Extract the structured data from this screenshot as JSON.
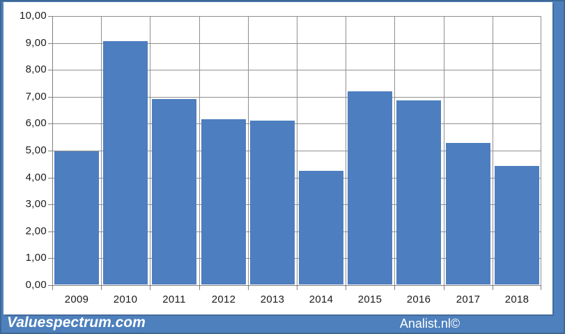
{
  "page": {
    "background_color": "#4d80bc",
    "edge_color": "#3e6795",
    "panel_color": "#ffffff"
  },
  "footer": {
    "left_brand": "Valuespectrum.com",
    "right_brand": "Analist.nl©"
  },
  "chart_data": {
    "type": "bar",
    "title": "",
    "xlabel": "",
    "ylabel": "",
    "categories": [
      "2009",
      "2010",
      "2011",
      "2012",
      "2013",
      "2014",
      "2015",
      "2016",
      "2017",
      "2018"
    ],
    "values": [
      4.95,
      9.05,
      6.9,
      6.15,
      6.1,
      4.22,
      7.17,
      6.85,
      5.27,
      4.4
    ],
    "ylim": [
      0,
      10
    ],
    "ytick_step": 1,
    "ytick_labels": [
      "0,00",
      "1,00",
      "2,00",
      "3,00",
      "4,00",
      "5,00",
      "6,00",
      "7,00",
      "8,00",
      "9,00",
      "10,00"
    ],
    "grid": true,
    "legend": "none",
    "bar_color": "#4d7ebf",
    "gridline_color": "#8f8f8f",
    "axis_color": "#7f7f7f",
    "tick_text_color": "#1a1a1a"
  }
}
